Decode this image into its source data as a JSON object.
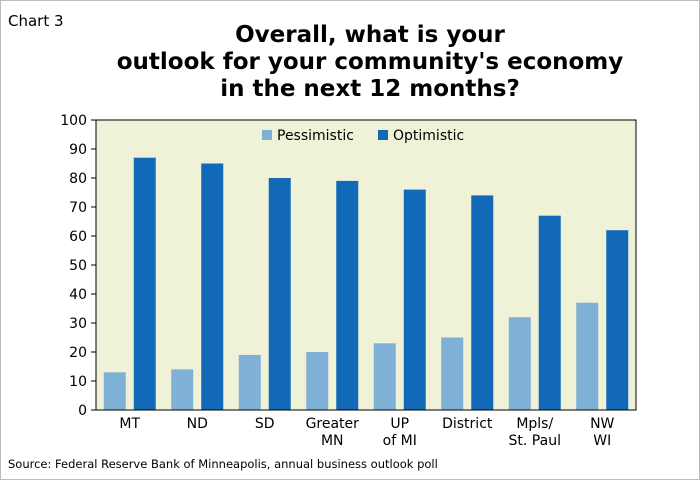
{
  "header": {
    "chart_number": "Chart 3",
    "title_lines": [
      "Overall, what is your",
      "outlook for your community's economy",
      "in the next 12 months?"
    ]
  },
  "footer": {
    "source": "Source: Federal Reserve Bank of Minneapolis, annual business outlook poll"
  },
  "colors": {
    "plot_background": "#f0f2d8",
    "pessimistic": "#7fb0d6",
    "optimistic": "#1269b8"
  },
  "chart_data": {
    "type": "bar",
    "title": "Overall, what is your outlook for your community's economy in the next 12 months?",
    "categories": [
      [
        "MT"
      ],
      [
        "ND"
      ],
      [
        "SD"
      ],
      [
        "Greater",
        "MN"
      ],
      [
        "UP",
        "of MI"
      ],
      [
        "District"
      ],
      [
        "Mpls/",
        "St. Paul"
      ],
      [
        "NW",
        "WI"
      ]
    ],
    "series": [
      {
        "name": "Pessimistic",
        "values": [
          13,
          14,
          19,
          20,
          23,
          25,
          32,
          37
        ]
      },
      {
        "name": "Optimistic",
        "values": [
          87,
          85,
          80,
          79,
          76,
          74,
          67,
          62
        ]
      }
    ],
    "ylim": [
      0,
      100
    ],
    "yticks": [
      0,
      10,
      20,
      30,
      40,
      50,
      60,
      70,
      80,
      90,
      100
    ],
    "legend_position": "top-center",
    "grid": false
  }
}
